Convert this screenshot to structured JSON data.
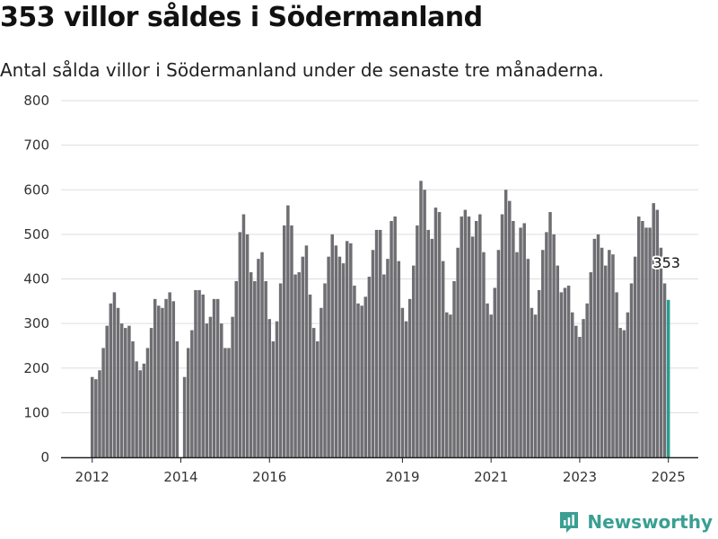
{
  "title": "353 villor såldes i Södermanland",
  "subtitle": "Antal sålda villor i Södermanland under de senaste tre månaderna.",
  "brand": "Newsworthy",
  "colors": {
    "bar": "#6e6e73",
    "highlight": "#2a9d8f",
    "brand": "#3a9f92",
    "grid": "#dddddd",
    "axis": "#222222"
  },
  "chart_data": {
    "type": "bar",
    "title": "353 villor såldes i Södermanland",
    "subtitle": "Antal sålda villor i Södermanland under de senaste tre månaderna.",
    "xlabel": "",
    "ylabel": "",
    "ylim": [
      0,
      800
    ],
    "yticks": [
      0,
      100,
      200,
      300,
      400,
      500,
      600,
      700,
      800
    ],
    "xticks": [
      "2012",
      "2014",
      "2016",
      "2019",
      "2021",
      "2023",
      "2025"
    ],
    "grid": true,
    "highlight_label": "353",
    "segments": [
      {
        "values": [
          180,
          175,
          195,
          245,
          295,
          345,
          370,
          335,
          300,
          290,
          295,
          260,
          215,
          195,
          210,
          245,
          290,
          355,
          340,
          335,
          355,
          370,
          350,
          260
        ]
      },
      {
        "values": [
          180,
          245,
          285,
          375,
          375,
          365,
          300,
          315,
          355,
          355,
          300,
          245,
          245,
          315,
          395,
          505,
          545,
          500,
          415,
          395,
          445,
          460,
          395,
          310,
          260,
          305,
          390,
          520,
          565,
          520,
          410,
          415,
          450,
          475,
          365,
          290,
          260,
          335,
          390,
          450,
          500,
          475,
          450,
          435,
          485,
          480,
          385,
          345,
          340,
          360,
          405,
          465,
          510,
          510,
          410,
          445,
          530,
          540,
          440,
          335,
          305,
          355,
          430,
          520,
          620,
          600,
          510,
          490,
          560,
          550,
          440,
          325,
          320,
          395,
          470,
          540,
          555,
          540,
          495,
          530,
          545,
          460,
          345,
          320,
          380,
          465,
          545,
          600,
          575,
          530,
          460,
          515,
          525,
          445,
          335,
          320,
          375,
          465,
          505,
          550,
          500,
          430,
          370,
          380,
          385,
          325,
          295,
          270,
          310,
          345,
          415,
          490,
          500,
          470,
          430,
          465,
          455,
          370,
          290,
          285,
          325,
          390,
          450,
          540,
          530,
          515,
          515,
          570,
          555,
          470,
          390,
          353
        ]
      }
    ]
  }
}
